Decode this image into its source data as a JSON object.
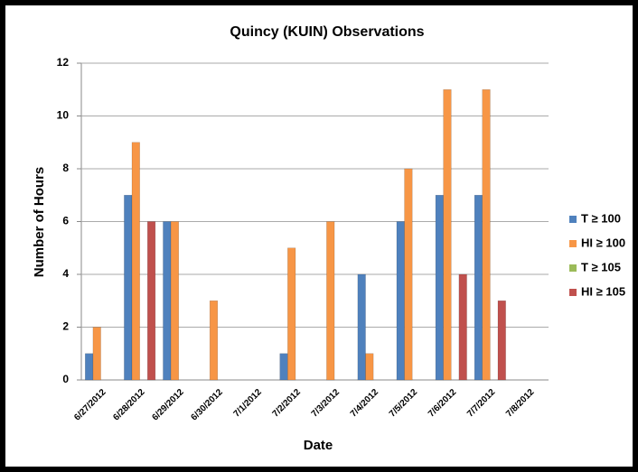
{
  "chart_data": {
    "type": "bar",
    "title": "Quincy (KUIN) Observations",
    "x_label": "Date",
    "y_label": "Number of Hours",
    "categories": [
      "6/27/2012",
      "6/28/2012",
      "6/29/2012",
      "6/30/2012",
      "7/1/2012",
      "7/2/2012",
      "7/3/2012",
      "7/4/2012",
      "7/5/2012",
      "7/6/2012",
      "7/7/2012",
      "7/8/2012"
    ],
    "series": [
      {
        "name": "T ≥ 100",
        "color": "#4f81bd",
        "values": [
          1,
          7,
          6,
          0,
          0,
          1,
          0,
          4,
          6,
          7,
          7,
          0
        ]
      },
      {
        "name": "HI ≥ 100",
        "color": "#f79646",
        "values": [
          2,
          9,
          6,
          3,
          0,
          5,
          6,
          1,
          8,
          11,
          11,
          0
        ]
      },
      {
        "name": "T ≥ 105",
        "color": "#9bbb59",
        "values": [
          0,
          0,
          0,
          0,
          0,
          0,
          0,
          0,
          0,
          0,
          0,
          0
        ]
      },
      {
        "name": "HI ≥ 105",
        "color": "#c0504d",
        "values": [
          0,
          6,
          0,
          0,
          0,
          0,
          0,
          0,
          0,
          4,
          3,
          0
        ]
      }
    ],
    "ylim": [
      0,
      12
    ],
    "yticks": [
      0,
      2,
      4,
      6,
      8,
      10,
      12
    ],
    "grid": true,
    "legend": "right"
  }
}
